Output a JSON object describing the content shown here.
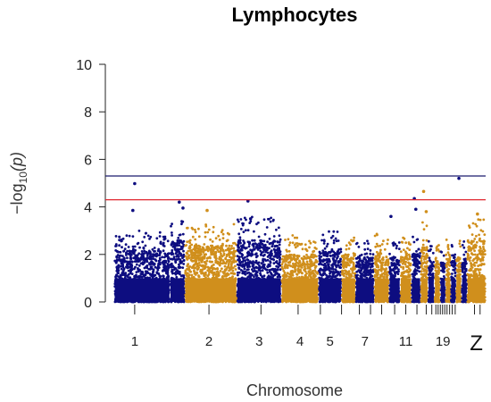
{
  "chart_data": {
    "type": "scatter",
    "subtype": "manhattan",
    "title": "Lymphocytes",
    "xlabel": "Chromosome",
    "ylabel_main": "−log",
    "ylabel_sub": "10",
    "ylabel_tail": "(p)",
    "ylim": [
      0,
      10
    ],
    "yticks": [
      0,
      2,
      4,
      6,
      8,
      10
    ],
    "xlim": [
      0,
      1000
    ],
    "grid": false,
    "colors": [
      "#0d0d80",
      "#d08f1c"
    ],
    "chromosomes": [
      {
        "label": "1",
        "start": 0,
        "end": 150,
        "peak": 3.0,
        "color_index": 0
      },
      {
        "label": "",
        "start": 150,
        "end": 190,
        "peak": 3.6,
        "color_index": 0
      },
      {
        "label": "2",
        "start": 190,
        "end": 330,
        "peak": 3.3,
        "color_index": 1
      },
      {
        "label": "3",
        "start": 330,
        "end": 450,
        "peak": 3.6,
        "color_index": 0
      },
      {
        "label": "4",
        "start": 450,
        "end": 550,
        "peak": 2.8,
        "color_index": 1
      },
      {
        "label": "5",
        "start": 550,
        "end": 612,
        "peak": 3.0,
        "color_index": 0
      },
      {
        "label": "",
        "start": 612,
        "end": 650,
        "peak": 2.8,
        "color_index": 1
      },
      {
        "label": "7",
        "start": 650,
        "end": 700,
        "peak": 2.6,
        "color_index": 0
      },
      {
        "label": "",
        "start": 700,
        "end": 740,
        "peak": 2.9,
        "color_index": 1
      },
      {
        "label": "",
        "start": 740,
        "end": 770,
        "peak": 2.6,
        "color_index": 0
      },
      {
        "label": "11",
        "start": 770,
        "end": 800,
        "peak": 2.8,
        "color_index": 1
      },
      {
        "label": "",
        "start": 800,
        "end": 825,
        "peak": 2.9,
        "color_index": 0
      },
      {
        "label": "",
        "start": 825,
        "end": 845,
        "peak": 3.4,
        "color_index": 1
      },
      {
        "label": "",
        "start": 845,
        "end": 862,
        "peak": 2.6,
        "color_index": 0
      },
      {
        "label": "",
        "start": 862,
        "end": 878,
        "peak": 2.4,
        "color_index": 1
      },
      {
        "label": "19",
        "start": 878,
        "end": 892,
        "peak": 2.3,
        "color_index": 0
      },
      {
        "label": "",
        "start": 892,
        "end": 906,
        "peak": 2.8,
        "color_index": 1
      },
      {
        "label": "",
        "start": 906,
        "end": 920,
        "peak": 2.4,
        "color_index": 0
      },
      {
        "label": "",
        "start": 920,
        "end": 935,
        "peak": 2.6,
        "color_index": 1
      },
      {
        "label": "",
        "start": 935,
        "end": 950,
        "peak": 2.6,
        "color_index": 0
      },
      {
        "label": "Z",
        "start": 950,
        "end": 1000,
        "peak": 3.6,
        "color_index": 1
      }
    ],
    "highlight_points": [
      {
        "x": 55,
        "y": 4.98,
        "color_index": 0
      },
      {
        "x": 50,
        "y": 3.85,
        "color_index": 0
      },
      {
        "x": 175,
        "y": 4.2,
        "color_index": 0
      },
      {
        "x": 185,
        "y": 3.95,
        "color_index": 0
      },
      {
        "x": 250,
        "y": 3.85,
        "color_index": 1
      },
      {
        "x": 360,
        "y": 4.25,
        "color_index": 0
      },
      {
        "x": 367,
        "y": 3.5,
        "color_index": 0
      },
      {
        "x": 745,
        "y": 3.6,
        "color_index": 0
      },
      {
        "x": 808,
        "y": 4.35,
        "color_index": 0
      },
      {
        "x": 812,
        "y": 3.9,
        "color_index": 0
      },
      {
        "x": 833,
        "y": 4.65,
        "color_index": 1
      },
      {
        "x": 840,
        "y": 3.8,
        "color_index": 1
      },
      {
        "x": 928,
        "y": 5.2,
        "color_index": 0
      },
      {
        "x": 978,
        "y": 3.7,
        "color_index": 1
      }
    ],
    "thresholds": [
      {
        "y": 5.3,
        "color": "#1a1a6e"
      },
      {
        "y": 4.3,
        "color": "#e0262f"
      }
    ],
    "xtick_marks": [
      55,
      255,
      395,
      495,
      555,
      612,
      660,
      690,
      720,
      755,
      785,
      815,
      840,
      855,
      866,
      872,
      878,
      884,
      890,
      896,
      903,
      910,
      918,
      970,
      985
    ]
  }
}
